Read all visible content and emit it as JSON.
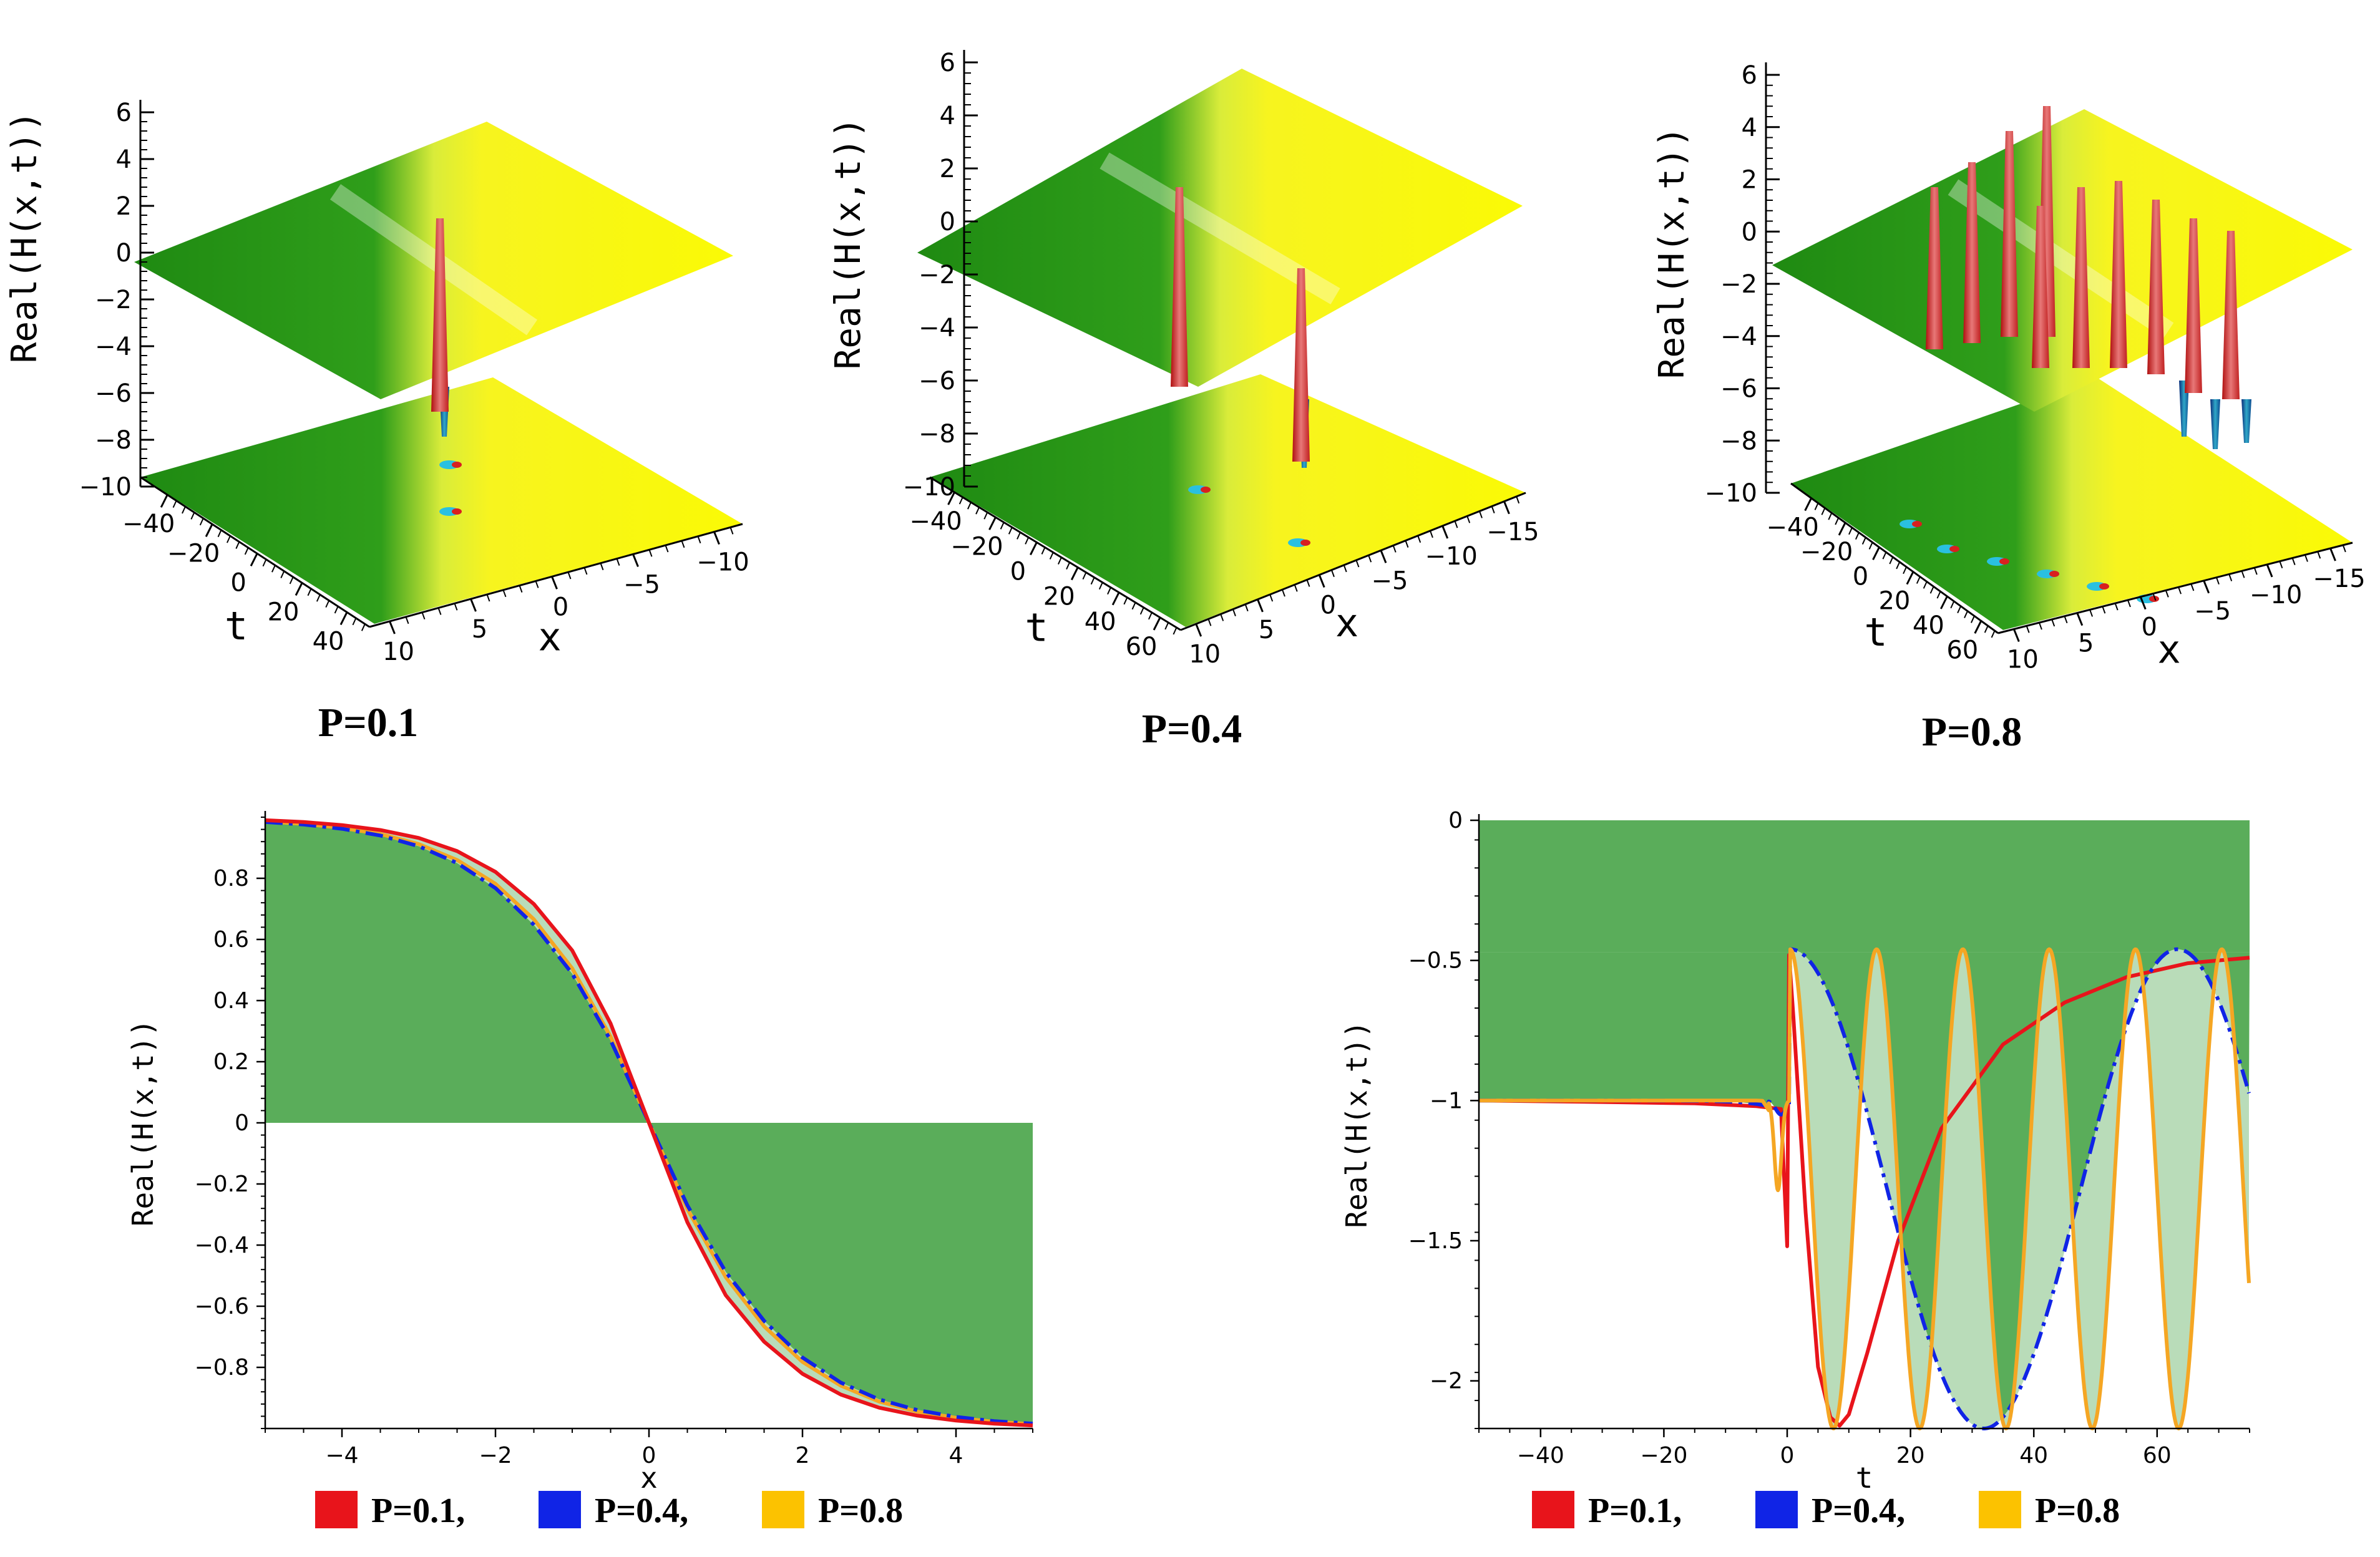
{
  "chart_data": [
    {
      "type": "surface3d",
      "panel": "top-left",
      "caption": "P=0.1",
      "zlabel": "Real(H(x,t))",
      "xlabel": "x",
      "tlabel": "t",
      "z_ticks": [
        "6",
        "4",
        "2",
        "0",
        "−2",
        "−4",
        "−6",
        "−8",
        "−10"
      ],
      "t_ticks": [
        "−40",
        "−20",
        "0",
        "20",
        "40"
      ],
      "x_ticks": [
        "10",
        "5",
        "0",
        "−5",
        "−10"
      ],
      "p": 0.1
    },
    {
      "type": "surface3d",
      "panel": "top-middle",
      "caption": "P=0.4",
      "zlabel": "Real(H(x,t))",
      "xlabel": "x",
      "tlabel": "t",
      "z_ticks": [
        "6",
        "4",
        "2",
        "0",
        "−2",
        "−4",
        "−6",
        "−8",
        "−10"
      ],
      "t_ticks": [
        "−40",
        "−20",
        "0",
        "20",
        "40",
        "60"
      ],
      "x_ticks": [
        "10",
        "5",
        "0",
        "−5",
        "−10",
        "−15"
      ],
      "p": 0.4
    },
    {
      "type": "surface3d",
      "panel": "top-right",
      "caption": "P=0.8",
      "zlabel": "Real(H(x,t))",
      "xlabel": "x",
      "tlabel": "t",
      "z_ticks": [
        "6",
        "4",
        "2",
        "0",
        "−2",
        "−4",
        "−6",
        "−8",
        "−10"
      ],
      "t_ticks": [
        "−40",
        "−20",
        "0",
        "20",
        "40",
        "60"
      ],
      "x_ticks": [
        "10",
        "5",
        "0",
        "−5",
        "−10",
        "−15"
      ],
      "p": 0.8
    },
    {
      "type": "line",
      "panel": "bottom-left",
      "xlabel": "x",
      "ylabel": "Real(H(x,t))",
      "xlim": [
        -5,
        5
      ],
      "ylim": [
        -1,
        1
      ],
      "x_ticks": [
        -4,
        -2,
        0,
        2,
        4
      ],
      "x_tick_labels": [
        "−4",
        "−2",
        "0",
        "2",
        "4"
      ],
      "y_ticks": [
        0.8,
        0.6,
        0.4,
        0.2,
        0,
        -0.2,
        -0.4,
        -0.6,
        -0.8
      ],
      "y_tick_labels": [
        "0.8",
        "0.6",
        "0.4",
        "0.2",
        "0",
        "−0.2",
        "−0.4",
        "−0.6",
        "−0.8"
      ],
      "x": [
        -5,
        -4.5,
        -4,
        -3.5,
        -3,
        -2.5,
        -2,
        -1.5,
        -1,
        -0.5,
        0,
        0.5,
        1,
        1.5,
        2,
        2.5,
        3,
        3.5,
        4,
        4.5,
        5
      ],
      "series": [
        {
          "name": "P=0.1",
          "color": "#e8141b",
          "values": [
            0.99,
            0.984,
            0.974,
            0.958,
            0.932,
            0.889,
            0.821,
            0.716,
            0.564,
            0.325,
            0.0,
            -0.325,
            -0.564,
            -0.716,
            -0.821,
            -0.889,
            -0.932,
            -0.958,
            -0.974,
            -0.984,
            -0.99
          ]
        },
        {
          "name": "P=0.4",
          "color": "#1024e6",
          "dash": "dashdot",
          "values": [
            0.984,
            0.976,
            0.962,
            0.94,
            0.905,
            0.85,
            0.768,
            0.648,
            0.488,
            0.27,
            0.0,
            -0.27,
            -0.488,
            -0.648,
            -0.768,
            -0.85,
            -0.905,
            -0.94,
            -0.962,
            -0.976,
            -0.984
          ]
        },
        {
          "name": "P=0.8",
          "color": "#f5a623",
          "values": [
            0.986,
            0.978,
            0.965,
            0.945,
            0.912,
            0.86,
            0.782,
            0.666,
            0.505,
            0.282,
            0.0,
            -0.282,
            -0.505,
            -0.666,
            -0.782,
            -0.86,
            -0.912,
            -0.945,
            -0.965,
            -0.978,
            -0.986
          ]
        }
      ],
      "legend": [
        {
          "label": "P=0.1,",
          "color": "#e8141b"
        },
        {
          "label": "P=0.4,",
          "color": "#1024e6"
        },
        {
          "label": "P=0.8",
          "color": "#fcc200"
        }
      ]
    },
    {
      "type": "line",
      "panel": "bottom-right",
      "xlabel": "t",
      "ylabel": "Real(H(x,t))",
      "xlim": [
        -50,
        75
      ],
      "ylim": [
        -2.17,
        0
      ],
      "x_ticks": [
        -40,
        -20,
        0,
        20,
        40,
        60
      ],
      "x_tick_labels": [
        "−40",
        "−20",
        "0",
        "20",
        "40",
        "60"
      ],
      "y_ticks": [
        0,
        -0.5,
        -1,
        -1.5,
        -2
      ],
      "y_tick_labels": [
        "0",
        "−0.5",
        "−1",
        "−1.5",
        "−2"
      ],
      "series": [
        {
          "name": "P=0.1",
          "color": "#e8141b",
          "samples": [
            [
              -50,
              -1.0
            ],
            [
              -30,
              -1.005
            ],
            [
              -15,
              -1.01
            ],
            [
              -5,
              -1.02
            ],
            [
              -1,
              -1.03
            ],
            [
              0,
              -1.52
            ],
            [
              0.3,
              -0.48
            ],
            [
              1,
              -0.7
            ],
            [
              3,
              -1.4
            ],
            [
              5,
              -1.95
            ],
            [
              7,
              -2.13
            ],
            [
              8.5,
              -2.16
            ],
            [
              10,
              -2.12
            ],
            [
              13,
              -1.9
            ],
            [
              18,
              -1.5
            ],
            [
              25,
              -1.1
            ],
            [
              35,
              -0.8
            ],
            [
              45,
              -0.65
            ],
            [
              55,
              -0.56
            ],
            [
              65,
              -0.51
            ],
            [
              75,
              -0.49
            ]
          ]
        },
        {
          "name": "P=0.4",
          "color": "#1024e6",
          "dash": "dashdot",
          "form": "oscillation",
          "period": 62.8,
          "phase_t": 0.5,
          "end": 75
        },
        {
          "name": "P=0.8",
          "color": "#f5a623",
          "form": "oscillation",
          "period": 14.0,
          "phase_t": 0.5,
          "end": 75
        }
      ],
      "legend": [
        {
          "label": "P=0.1,",
          "color": "#e8141b"
        },
        {
          "label": "P=0.4,",
          "color": "#1024e6"
        },
        {
          "label": "P=0.8",
          "color": "#fcc200"
        }
      ]
    }
  ]
}
